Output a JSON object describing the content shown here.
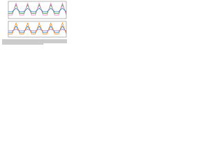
{
  "chart_data": [
    {
      "type": "line",
      "x": [
        0,
        1,
        2,
        3,
        4,
        5,
        6,
        7,
        8,
        9,
        10,
        11,
        12,
        13,
        14,
        15
      ],
      "xlim": [
        0,
        15
      ],
      "ylim": [
        0,
        10
      ],
      "series": [
        {
          "color": "#2ca02c",
          "values": [
            3,
            3,
            8,
            3,
            3,
            8,
            3,
            3,
            8,
            3,
            3,
            8,
            3,
            3,
            8,
            3
          ]
        },
        {
          "color": "#e377c2",
          "values": [
            2,
            2,
            9,
            2,
            2,
            9,
            2,
            2,
            9,
            2,
            2,
            9,
            2,
            2,
            9,
            2
          ]
        },
        {
          "color": "#1f77b4",
          "values": [
            4,
            4,
            6,
            4,
            4,
            6,
            4,
            4,
            6,
            4,
            4,
            6,
            4,
            4,
            6,
            4
          ]
        }
      ]
    },
    {
      "type": "line",
      "x": [
        0,
        1,
        2,
        3,
        4,
        5,
        6,
        7,
        8,
        9,
        10,
        11,
        12,
        13,
        14,
        15
      ],
      "xlim": [
        0,
        15
      ],
      "ylim": [
        0,
        10
      ],
      "series": [
        {
          "color": "#1f77b4",
          "values": [
            3,
            3,
            7,
            3,
            3,
            7,
            3,
            3,
            7,
            3,
            3,
            7,
            3,
            3,
            7,
            3
          ]
        },
        {
          "color": "#ff7f0e",
          "values": [
            2,
            2,
            9,
            2,
            2,
            9,
            2,
            2,
            9,
            2,
            2,
            9,
            2,
            2,
            9,
            2
          ]
        },
        {
          "color": "#9467bd",
          "values": [
            4,
            4,
            5,
            4,
            4,
            5,
            4,
            4,
            5,
            4,
            4,
            5,
            4,
            4,
            5,
            4
          ]
        }
      ]
    }
  ]
}
